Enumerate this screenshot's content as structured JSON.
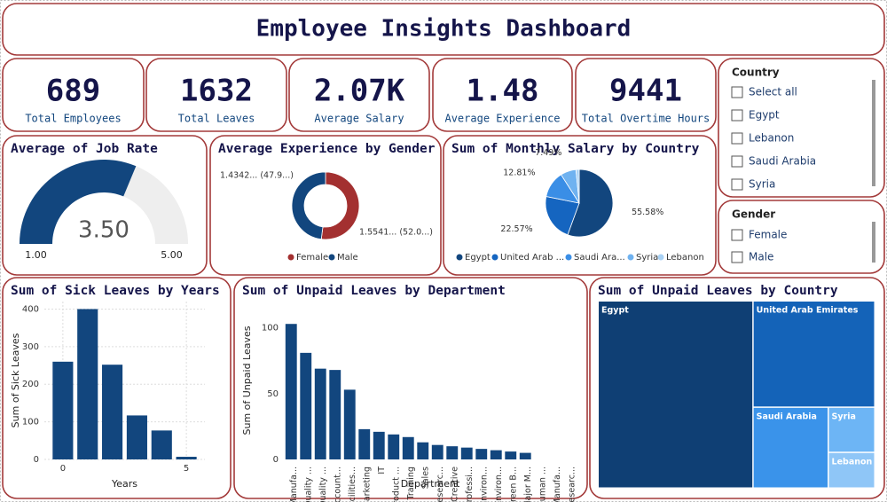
{
  "header": {
    "title": "Employee Insights Dashboard"
  },
  "kpis": [
    {
      "value": "689",
      "label": "Total Employees"
    },
    {
      "value": "1632",
      "label": "Total Leaves"
    },
    {
      "value": "2.07K",
      "label": "Average Salary"
    },
    {
      "value": "1.48",
      "label": "Average Experience"
    },
    {
      "value": "9441",
      "label": "Total Overtime Hours"
    }
  ],
  "slicers": [
    {
      "title": "Country",
      "options": [
        "Select all",
        "Egypt",
        "Lebanon",
        "Saudi Arabia",
        "Syria"
      ]
    },
    {
      "title": "Gender",
      "options": [
        "Female",
        "Male"
      ]
    }
  ],
  "chart_data": [
    {
      "type": "gauge",
      "title": "Average of Job Rate",
      "values": [
        3.5
      ],
      "value_labels": [
        "3.50"
      ],
      "color": "#12467e",
      "ylim": [
        1,
        5
      ],
      "yticks": [
        {
          "value": 1,
          "label": "1.00"
        },
        {
          "value": 5,
          "label": "5.00"
        }
      ]
    },
    {
      "type": "donut",
      "title": "Average Experience by Gender",
      "categories": [
        "Female",
        "Male"
      ],
      "values": [
        1.5541,
        1.4342
      ],
      "value_labels": [
        "1.5541... (52.0...)",
        "1.4342... (47.9...)"
      ],
      "colors": [
        "#a33030",
        "#12467e"
      ]
    },
    {
      "type": "pie",
      "title": "Sum of Monthly Salary by Country",
      "categories": [
        "Egypt",
        "United Arab ...",
        "Saudi Ara...",
        "Syria",
        "Lebanon"
      ],
      "values": [
        55.58,
        22.57,
        12.81,
        7.49,
        1.55
      ],
      "value_labels": [
        "55.58%",
        "22.57%",
        "12.81%",
        "7.49%",
        null
      ],
      "colors": [
        "#12467e",
        "#1565c0",
        "#3a8ee6",
        "#6fb2f0",
        "#a9d2f5"
      ]
    },
    {
      "type": "bar",
      "title": "Sum of Sick Leaves by Years",
      "x": [
        0,
        1,
        2,
        3,
        4,
        5
      ],
      "values": [
        260,
        400,
        252,
        117,
        77,
        7
      ],
      "color": "#12467e",
      "xlim": [
        -0.75,
        5.75
      ],
      "xticks": [
        0,
        5
      ],
      "ylim": [
        0,
        420
      ],
      "yticks": [
        0,
        100,
        200,
        300,
        400
      ],
      "xlabel": "Years",
      "ylabel": "Sum of Sick Leaves",
      "grid": true
    },
    {
      "type": "bar",
      "title": "Sum of Unpaid Leaves by Department",
      "categories": [
        "Manufa...",
        "Quality ...",
        "Quality ...",
        "Account...",
        "Facilities...",
        "Marketing",
        "IT",
        "Product ...",
        "Training",
        "Sales",
        "Researc...",
        "Creative",
        "Professi...",
        "Environ...",
        "Environ...",
        "Green B...",
        "Major M...",
        "Human ...",
        "Manufa...",
        "Researc..."
      ],
      "values": [
        103,
        81,
        69,
        68,
        53,
        23,
        21,
        19,
        17,
        13,
        11,
        10,
        9,
        8,
        7,
        6,
        5,
        0,
        0,
        0
      ],
      "color": "#12467e",
      "ylim": [
        0,
        120
      ],
      "yticks": [
        0,
        50,
        100
      ],
      "xlabel": "Department",
      "ylabel": "Sum of Unpaid Leaves"
    },
    {
      "type": "treemap",
      "title": "Sum of Unpaid Leaves by Country",
      "categories": [
        "Egypt",
        "United Arab Emirates",
        "Saudi Arabia",
        "Syria",
        "Lebanon"
      ],
      "values": [
        262,
        117,
        55,
        19,
        15
      ],
      "colors": [
        "#0f3f74",
        "#1463b8",
        "#3a93ea",
        "#6db5f5",
        "#8fc6f7"
      ]
    }
  ]
}
